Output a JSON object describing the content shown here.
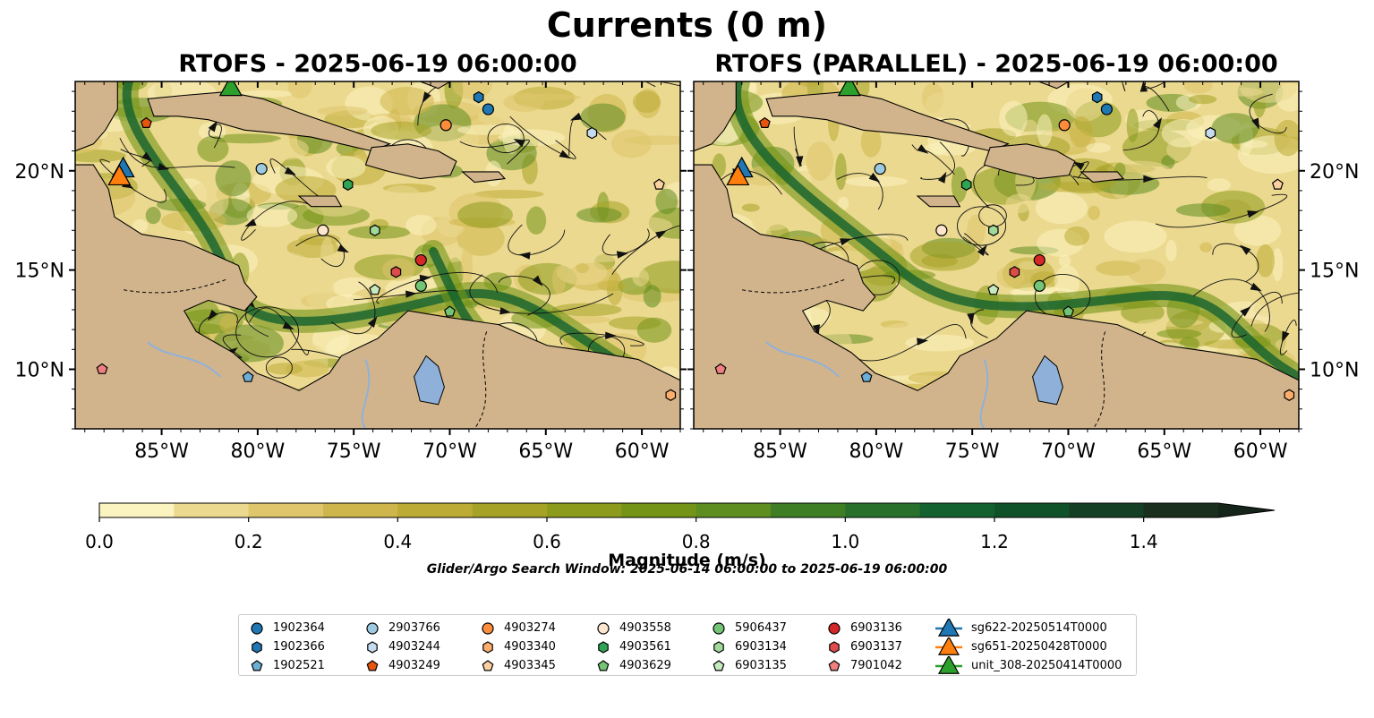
{
  "figure": {
    "title": "Currents (0 m)",
    "footnote": "Glider/Argo Search Window: 2025-06-14 06:00:00 to 2025-06-19 06:00:00"
  },
  "chart_data": [
    {
      "type": "heatmap",
      "title": "RTOFS - 2025-06-19 06:00:00",
      "variable": "surface current magnitude (m/s) with streamlines",
      "xlim": [
        -89.5,
        -58
      ],
      "ylim": [
        7,
        24.5
      ],
      "x_ticks": [
        "85°W",
        "80°W",
        "75°W",
        "70°W",
        "65°W",
        "60°W"
      ],
      "y_ticks": [
        "10°N",
        "15°N",
        "20°N"
      ],
      "y_tick_side": "left"
    },
    {
      "type": "heatmap",
      "title": "RTOFS (PARALLEL) - 2025-06-19 06:00:00",
      "variable": "surface current magnitude (m/s) with streamlines",
      "xlim": [
        -89.5,
        -58
      ],
      "ylim": [
        7,
        24.5
      ],
      "x_ticks": [
        "85°W",
        "80°W",
        "75°W",
        "70°W",
        "65°W",
        "60°W"
      ],
      "y_ticks": [
        "10°N",
        "15°N",
        "20°N"
      ],
      "y_tick_side": "right"
    }
  ],
  "colorbar": {
    "label": "Magnitude (m/s)",
    "ticks": [
      "0.0",
      "0.2",
      "0.4",
      "0.6",
      "0.8",
      "1.0",
      "1.2",
      "1.4"
    ],
    "tick_values": [
      0,
      0.2,
      0.4,
      0.6,
      0.8,
      1.0,
      1.2,
      1.4
    ],
    "bounds": [
      0,
      1.5
    ],
    "extend": "max",
    "colors": [
      "#fbf3c0",
      "#ebd98f",
      "#dfc56c",
      "#cfb64c",
      "#bcab34",
      "#a6a226",
      "#8d9b1d",
      "#739417",
      "#5e8d20",
      "#3f7e25",
      "#28702b",
      "#13612e",
      "#0f5129",
      "#143f24",
      "#1a2f1d",
      "#15251a"
    ]
  },
  "land_color": "#d2b48c",
  "lake_color": "#8fb1d9",
  "platforms": [
    {
      "id": "1902364",
      "color": "#1f77b4",
      "shape": "circle",
      "lon": -68.0,
      "lat": 23.1
    },
    {
      "id": "1902366",
      "color": "#1f77b4",
      "shape": "hexagon",
      "lon": -68.5,
      "lat": 23.7
    },
    {
      "id": "1902521",
      "color": "#6baed6",
      "shape": "pentagon",
      "lon": -80.5,
      "lat": 9.6
    },
    {
      "id": "2903766",
      "color": "#9ecae1",
      "shape": "circle",
      "lon": -79.8,
      "lat": 20.1
    },
    {
      "id": "4903244",
      "color": "#c6dbef",
      "shape": "hexagon",
      "lon": -62.6,
      "lat": 21.9
    },
    {
      "id": "4903249",
      "color": "#e6550d",
      "shape": "pentagon",
      "lon": -85.8,
      "lat": 22.4
    },
    {
      "id": "4903274",
      "color": "#fd8d3c",
      "shape": "circle",
      "lon": -70.2,
      "lat": 22.3
    },
    {
      "id": "4903340",
      "color": "#fdae6b",
      "shape": "hexagon",
      "lon": -58.5,
      "lat": 8.7
    },
    {
      "id": "4903345",
      "color": "#fdd0a2",
      "shape": "pentagon",
      "lon": -59.1,
      "lat": 19.3
    },
    {
      "id": "4903558",
      "color": "#fee6ce",
      "shape": "circle",
      "lon": -76.6,
      "lat": 17.0
    },
    {
      "id": "4903561",
      "color": "#31a354",
      "shape": "hexagon",
      "lon": -75.3,
      "lat": 19.3
    },
    {
      "id": "4903629",
      "color": "#74c476",
      "shape": "pentagon",
      "lon": -70.0,
      "lat": 12.9
    },
    {
      "id": "5906437",
      "color": "#74c476",
      "shape": "circle",
      "lon": -71.5,
      "lat": 14.2
    },
    {
      "id": "6903134",
      "color": "#a1d99b",
      "shape": "hexagon",
      "lon": -73.9,
      "lat": 17.0
    },
    {
      "id": "6903135",
      "color": "#c7e9c0",
      "shape": "pentagon",
      "lon": -73.9,
      "lat": 14.0
    },
    {
      "id": "6903136",
      "color": "#d62728",
      "shape": "circle",
      "lon": -71.5,
      "lat": 15.5
    },
    {
      "id": "6903137",
      "color": "#de4b4b",
      "shape": "hexagon",
      "lon": -72.8,
      "lat": 14.9
    },
    {
      "id": "7901042",
      "color": "#f07f7f",
      "shape": "pentagon",
      "lon": -88.1,
      "lat": 10.0
    },
    {
      "id": "sg622-20250514T0000",
      "color": "#1f77b4",
      "shape": "triangle",
      "lon": -87.0,
      "lat": 20.1
    },
    {
      "id": "sg651-20250428T0000",
      "color": "#ff7f0e",
      "shape": "triangle",
      "lon": -87.2,
      "lat": 19.7
    },
    {
      "id": "unit_308-20250414T0000",
      "color": "#2ca02c",
      "shape": "triangle",
      "lon": -81.4,
      "lat": 24.2
    }
  ]
}
